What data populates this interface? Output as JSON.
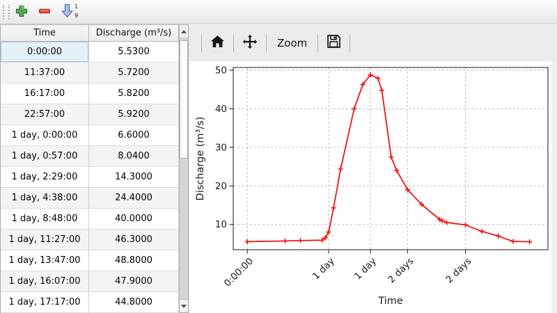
{
  "top_toolbar": {
    "add_label": "add row",
    "remove_label": "remove row",
    "sort_label": "sort rows",
    "sort_top_digit": "1",
    "sort_bottom_digit": "9"
  },
  "table": {
    "columns": [
      "Time",
      "Discharge (m³/s)"
    ],
    "selected_row": 0,
    "selected_col": 0,
    "rows": [
      [
        "0:00:00",
        "5.5300"
      ],
      [
        "11:37:00",
        "5.7200"
      ],
      [
        "16:17:00",
        "5.8200"
      ],
      [
        "22:57:00",
        "5.9200"
      ],
      [
        "1 day, 0:00:00",
        "6.6000"
      ],
      [
        "1 day, 0:57:00",
        "8.0400"
      ],
      [
        "1 day, 2:29:00",
        "14.3000"
      ],
      [
        "1 day, 4:38:00",
        "24.4000"
      ],
      [
        "1 day, 8:48:00",
        "40.0000"
      ],
      [
        "1 day, 11:27:00",
        "46.3000"
      ],
      [
        "1 day, 13:47:00",
        "48.8000"
      ],
      [
        "1 day, 16:07:00",
        "47.9000"
      ],
      [
        "1 day, 17:17:00",
        "44.8000"
      ]
    ]
  },
  "chart_toolbar": {
    "home_label": "home",
    "pan_label": "pan",
    "zoom_label": "Zoom",
    "save_label": "save"
  },
  "chart_data": {
    "type": "line",
    "title": "",
    "xlabel": "Time",
    "ylabel": "Discharge (m³/s)",
    "grid": true,
    "line_color": "#f21414",
    "marker": "+",
    "xlim": [
      -0.18,
      3.845
    ],
    "ylim": [
      3.45,
      50.72
    ],
    "yticks": [
      10,
      20,
      30,
      40,
      50
    ],
    "xticks": [
      {
        "t": 0.0,
        "label": "0:00:00"
      },
      {
        "t": 1.0396,
        "label": "1 day"
      },
      {
        "t": 1.5743,
        "label": "1 day"
      },
      {
        "t": 2.05,
        "label": "2 days"
      },
      {
        "t": 2.79,
        "label": "2 days"
      }
    ],
    "series": [
      {
        "name": "Discharge",
        "x_days": [
          0,
          0.484,
          0.6785,
          0.9563,
          1.0,
          1.0396,
          1.1035,
          1.1931,
          1.3667,
          1.4771,
          1.5743,
          1.6715,
          1.7201,
          1.84,
          1.91,
          2.05,
          2.23,
          2.46,
          2.49,
          2.55,
          2.79,
          3.0,
          3.21,
          3.4,
          3.61
        ],
        "values": [
          5.53,
          5.72,
          5.82,
          5.92,
          6.6,
          8.04,
          14.3,
          24.4,
          40.0,
          46.3,
          48.8,
          47.9,
          44.8,
          27.5,
          24.0,
          19.0,
          15.2,
          11.3,
          11.0,
          10.5,
          9.9,
          8.2,
          7.0,
          5.6,
          5.5
        ]
      }
    ]
  }
}
